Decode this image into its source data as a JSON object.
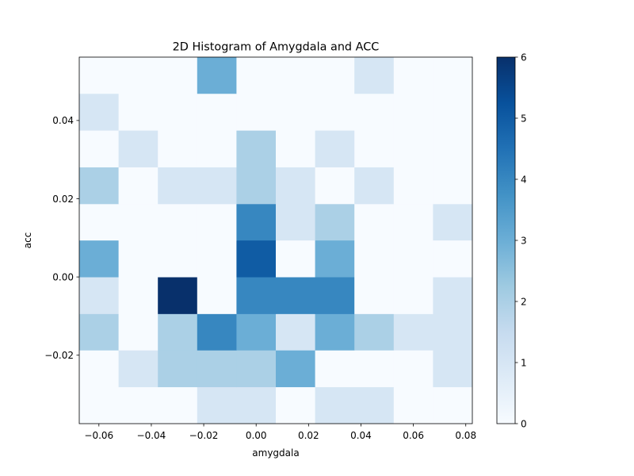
{
  "chart_data": {
    "type": "heatmap",
    "title": "2D Histogram of Amygdala and ACC",
    "xlabel": "amygdala",
    "ylabel": "acc",
    "colormap": "Blues",
    "colormap_stops": [
      "#f7fbff",
      "#deebf7",
      "#c6dbef",
      "#9ecae1",
      "#6baed6",
      "#4292c6",
      "#2171b5",
      "#08519c",
      "#08306b"
    ],
    "x_edges": [
      -0.0675,
      -0.0525,
      -0.0375,
      -0.0225,
      -0.0075,
      0.0075,
      0.0225,
      0.0375,
      0.0525,
      0.0675,
      0.0825
    ],
    "y_edges": [
      -0.0375,
      -0.0281,
      -0.0187,
      -0.0094,
      0.0,
      0.0094,
      0.0187,
      0.0281,
      0.0375,
      0.0469,
      0.0562
    ],
    "counts": [
      [
        0,
        0,
        0,
        1,
        1,
        0,
        1,
        1,
        0,
        0
      ],
      [
        0,
        1,
        2,
        2,
        2,
        3,
        0,
        0,
        0,
        1
      ],
      [
        2,
        0,
        2,
        4,
        3,
        1,
        3,
        2,
        1,
        1
      ],
      [
        1,
        0,
        6,
        0,
        4,
        4,
        4,
        0,
        0,
        1
      ],
      [
        3,
        0,
        0,
        0,
        5,
        0,
        3,
        0,
        0,
        0
      ],
      [
        0,
        0,
        0,
        0,
        4,
        1,
        2,
        0,
        0,
        1
      ],
      [
        2,
        0,
        1,
        1,
        2,
        1,
        0,
        1,
        0,
        0
      ],
      [
        0,
        1,
        0,
        0,
        2,
        0,
        1,
        0,
        0,
        0
      ],
      [
        1,
        0,
        0,
        0,
        0,
        0,
        0,
        0,
        0,
        0
      ],
      [
        0,
        0,
        0,
        3,
        0,
        0,
        0,
        1,
        0,
        0
      ]
    ],
    "xlim": [
      -0.0675,
      0.0825
    ],
    "ylim": [
      -0.0375,
      0.0562
    ],
    "x_ticks": [
      -0.06,
      -0.04,
      -0.02,
      0.0,
      0.02,
      0.04,
      0.06,
      0.08
    ],
    "x_tick_labels": [
      "−0.06",
      "−0.04",
      "−0.02",
      "0.00",
      "0.02",
      "0.04",
      "0.06",
      "0.08"
    ],
    "y_ticks": [
      -0.02,
      0.0,
      0.02,
      0.04
    ],
    "y_tick_labels": [
      "−0.02",
      "0.00",
      "0.02",
      "0.04"
    ],
    "colorbar": {
      "min": 0,
      "max": 6,
      "ticks": [
        0,
        1,
        2,
        3,
        4,
        5,
        6
      ],
      "tick_labels": [
        "0",
        "1",
        "2",
        "3",
        "4",
        "5",
        "6"
      ]
    },
    "grid": false,
    "legend": "none"
  }
}
